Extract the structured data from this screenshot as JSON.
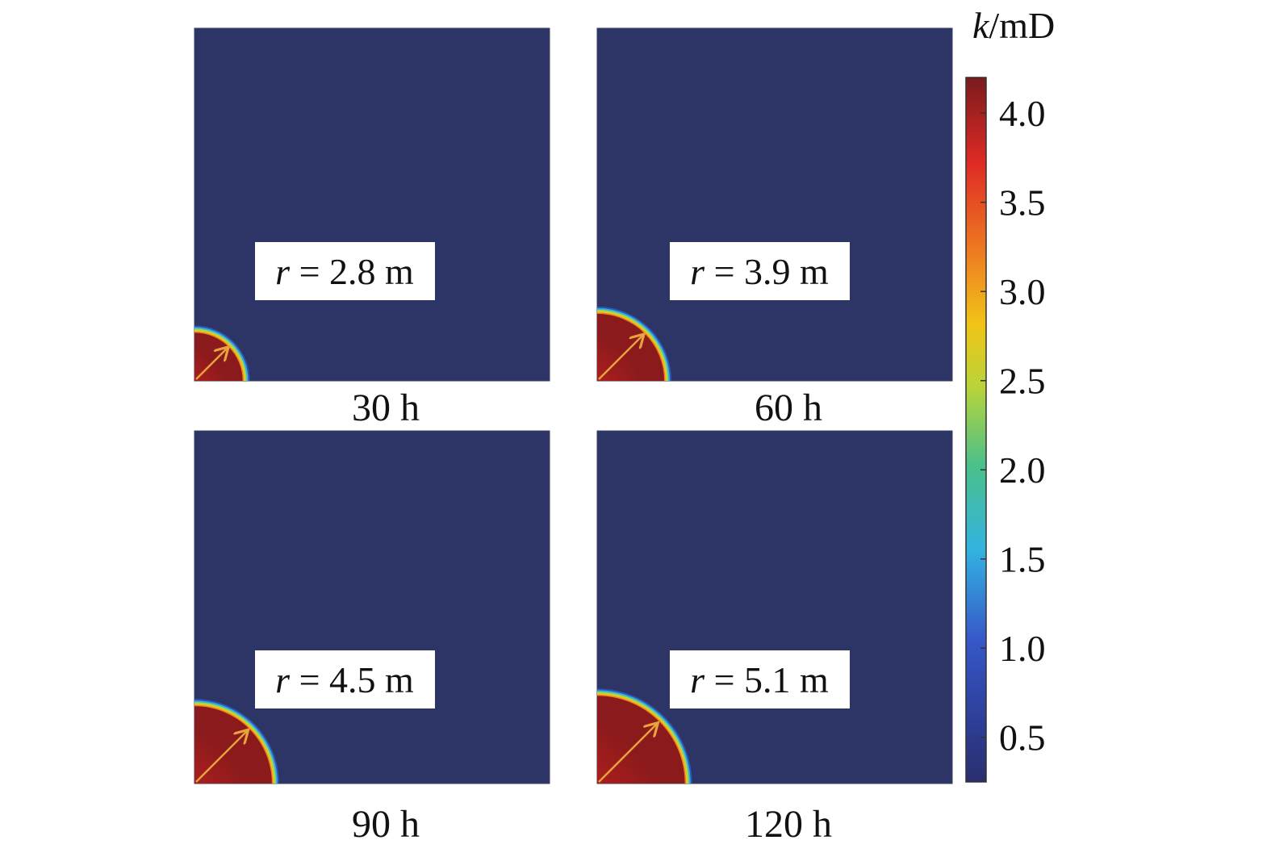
{
  "chart_data": {
    "type": "heatmap",
    "colorbar": {
      "label_symbol": "k",
      "label_unit": "/mD",
      "min": 0.25,
      "max": 4.2,
      "ticks": [
        "4.0",
        "3.5",
        "3.0",
        "2.5",
        "2.0",
        "1.5",
        "1.0",
        "0.5"
      ],
      "tick_values": [
        4.0,
        3.5,
        3.0,
        2.5,
        2.0,
        1.5,
        1.0,
        0.5
      ]
    },
    "panels": [
      {
        "time_label": "30 h",
        "radius_symbol": "r",
        "radius_text": " = 2.8 m",
        "radius_m": 2.8
      },
      {
        "time_label": "60 h",
        "radius_symbol": "r",
        "radius_text": " = 3.9 m",
        "radius_m": 3.9
      },
      {
        "time_label": "90 h",
        "radius_symbol": "r",
        "radius_text": " = 4.5 m",
        "radius_m": 4.5
      },
      {
        "time_label": "120 h",
        "radius_symbol": "r",
        "radius_text": " = 5.1 m",
        "radius_m": 5.1
      }
    ],
    "colors": {
      "background_field": "#2c3565",
      "core_dark": "#8b1a1c",
      "core_bright": "#e3261f",
      "arrow": "#e8a33c"
    }
  }
}
